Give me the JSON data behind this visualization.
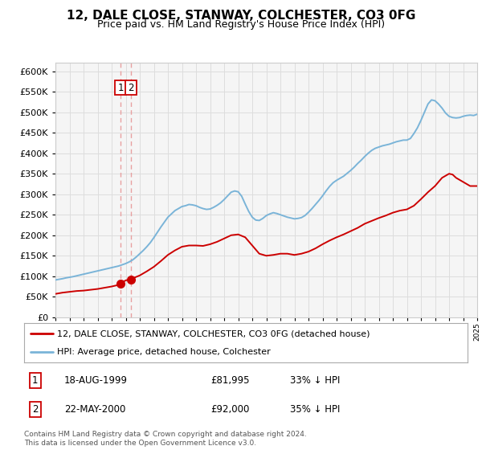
{
  "title": "12, DALE CLOSE, STANWAY, COLCHESTER, CO3 0FG",
  "subtitle": "Price paid vs. HM Land Registry's House Price Index (HPI)",
  "legend_line1": "12, DALE CLOSE, STANWAY, COLCHESTER, CO3 0FG (detached house)",
  "legend_line2": "HPI: Average price, detached house, Colchester",
  "transaction1_label": "1",
  "transaction1_date": "18-AUG-1999",
  "transaction1_price": "£81,995",
  "transaction1_hpi": "33% ↓ HPI",
  "transaction2_label": "2",
  "transaction2_date": "22-MAY-2000",
  "transaction2_price": "£92,000",
  "transaction2_hpi": "35% ↓ HPI",
  "footer": "Contains HM Land Registry data © Crown copyright and database right 2024.\nThis data is licensed under the Open Government Licence v3.0.",
  "hpi_color": "#7ab4d8",
  "price_color": "#cc0000",
  "vline_color": "#e8a0a0",
  "dot_color": "#cc0000",
  "marker_box_color": "#cc0000",
  "grid_color": "#dddddd",
  "background_color": "#ffffff",
  "plot_bg_color": "#f5f5f5",
  "ylim_min": 0,
  "ylim_max": 620000,
  "yticks": [
    0,
    50000,
    100000,
    150000,
    200000,
    250000,
    300000,
    350000,
    400000,
    450000,
    500000,
    550000,
    600000
  ],
  "x_start_year": 1995,
  "x_end_year": 2025,
  "transaction1_dot_year": 1999.625,
  "transaction1_dot_value": 81995,
  "transaction2_dot_year": 2000.38,
  "transaction2_dot_value": 92000,
  "hpi_years": [
    1995.0,
    1995.25,
    1995.5,
    1995.75,
    1996.0,
    1996.25,
    1996.5,
    1996.75,
    1997.0,
    1997.25,
    1997.5,
    1997.75,
    1998.0,
    1998.25,
    1998.5,
    1998.75,
    1999.0,
    1999.25,
    1999.5,
    1999.75,
    2000.0,
    2000.25,
    2000.5,
    2000.75,
    2001.0,
    2001.25,
    2001.5,
    2001.75,
    2002.0,
    2002.25,
    2002.5,
    2002.75,
    2003.0,
    2003.25,
    2003.5,
    2003.75,
    2004.0,
    2004.25,
    2004.5,
    2004.75,
    2005.0,
    2005.25,
    2005.5,
    2005.75,
    2006.0,
    2006.25,
    2006.5,
    2006.75,
    2007.0,
    2007.25,
    2007.5,
    2007.75,
    2008.0,
    2008.25,
    2008.5,
    2008.75,
    2009.0,
    2009.25,
    2009.5,
    2009.75,
    2010.0,
    2010.25,
    2010.5,
    2010.75,
    2011.0,
    2011.25,
    2011.5,
    2011.75,
    2012.0,
    2012.25,
    2012.5,
    2012.75,
    2013.0,
    2013.25,
    2013.5,
    2013.75,
    2014.0,
    2014.25,
    2014.5,
    2014.75,
    2015.0,
    2015.25,
    2015.5,
    2015.75,
    2016.0,
    2016.25,
    2016.5,
    2016.75,
    2017.0,
    2017.25,
    2017.5,
    2017.75,
    2018.0,
    2018.25,
    2018.5,
    2018.75,
    2019.0,
    2019.25,
    2019.5,
    2019.75,
    2020.0,
    2020.25,
    2020.5,
    2020.75,
    2021.0,
    2021.25,
    2021.5,
    2021.75,
    2022.0,
    2022.25,
    2022.5,
    2022.75,
    2023.0,
    2023.25,
    2023.5,
    2023.75,
    2024.0,
    2024.25,
    2024.5,
    2024.75,
    2025.0
  ],
  "hpi_values": [
    91000,
    92500,
    94000,
    96000,
    97500,
    99000,
    101000,
    103000,
    105000,
    107000,
    109000,
    111000,
    113000,
    115000,
    117000,
    119000,
    121000,
    123000,
    125000,
    128000,
    131000,
    135000,
    140000,
    147000,
    155000,
    163000,
    172000,
    182000,
    194000,
    207000,
    220000,
    232000,
    244000,
    252000,
    260000,
    265000,
    270000,
    272000,
    275000,
    274000,
    272000,
    268000,
    265000,
    263000,
    264000,
    268000,
    273000,
    279000,
    287000,
    296000,
    305000,
    308000,
    306000,
    295000,
    276000,
    258000,
    244000,
    237000,
    236000,
    241000,
    248000,
    252000,
    255000,
    253000,
    250000,
    247000,
    244000,
    242000,
    240000,
    241000,
    243000,
    248000,
    256000,
    265000,
    275000,
    285000,
    296000,
    308000,
    319000,
    328000,
    334000,
    339000,
    344000,
    351000,
    358000,
    366000,
    375000,
    383000,
    392000,
    400000,
    407000,
    412000,
    415000,
    418000,
    420000,
    422000,
    425000,
    428000,
    430000,
    432000,
    432000,
    436000,
    448000,
    462000,
    480000,
    500000,
    520000,
    530000,
    528000,
    520000,
    510000,
    498000,
    490000,
    487000,
    486000,
    487000,
    490000,
    492000,
    493000,
    492000,
    495000
  ],
  "price_years": [
    1995.0,
    1995.5,
    1996.0,
    1996.5,
    1997.0,
    1997.5,
    1998.0,
    1998.5,
    1999.0,
    1999.5,
    1999.625,
    2000.0,
    2000.38,
    2000.5,
    2001.0,
    2001.5,
    2002.0,
    2002.5,
    2003.0,
    2003.5,
    2004.0,
    2004.5,
    2005.0,
    2005.5,
    2006.0,
    2006.5,
    2007.0,
    2007.5,
    2008.0,
    2008.5,
    2009.0,
    2009.5,
    2010.0,
    2010.5,
    2011.0,
    2011.5,
    2012.0,
    2012.5,
    2013.0,
    2013.5,
    2014.0,
    2014.5,
    2015.0,
    2015.5,
    2016.0,
    2016.5,
    2017.0,
    2017.5,
    2018.0,
    2018.5,
    2019.0,
    2019.5,
    2020.0,
    2020.5,
    2021.0,
    2021.5,
    2022.0,
    2022.5,
    2023.0,
    2023.25,
    2023.5,
    2024.0,
    2024.5,
    2025.0
  ],
  "price_values": [
    57000,
    60000,
    62000,
    64000,
    65000,
    67000,
    69000,
    72000,
    75000,
    79000,
    81995,
    90000,
    92000,
    95000,
    102000,
    112000,
    123000,
    137000,
    152000,
    163000,
    172000,
    175000,
    175000,
    174000,
    178000,
    184000,
    192000,
    200000,
    202000,
    195000,
    175000,
    155000,
    150000,
    152000,
    155000,
    155000,
    152000,
    155000,
    160000,
    168000,
    178000,
    187000,
    195000,
    202000,
    210000,
    218000,
    228000,
    235000,
    242000,
    248000,
    255000,
    260000,
    263000,
    272000,
    288000,
    305000,
    320000,
    340000,
    350000,
    348000,
    340000,
    330000,
    320000,
    320000
  ]
}
